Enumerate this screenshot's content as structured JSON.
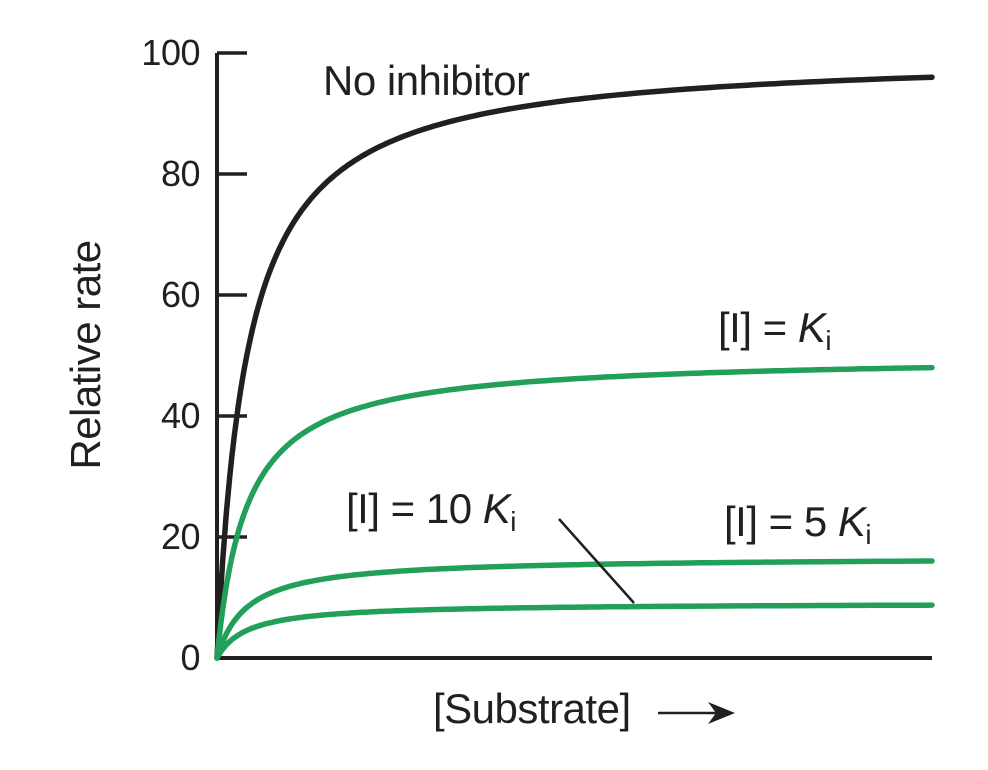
{
  "figure": {
    "ylabel": "Relative rate",
    "xlabel": "[Substrate]",
    "x_axis_arrow": true,
    "annotations": {
      "no_inhibitor": "No inhibitor",
      "ki": {
        "prefix": "[I] = ",
        "symbol": "K",
        "sub": "i"
      },
      "ten_ki": {
        "prefix": "[I] = 10 ",
        "symbol": "K",
        "sub": "i"
      },
      "five_ki": {
        "prefix": "[I] = 5 ",
        "symbol": "K",
        "sub": "i"
      }
    },
    "colors": {
      "ink": "#231f20",
      "green": "#22a05a"
    }
  },
  "chart_data": {
    "type": "line",
    "title": "",
    "xlabel": "[Substrate]",
    "ylabel": "Relative rate",
    "ylim": [
      0,
      100
    ],
    "yticks": [
      0,
      20,
      40,
      60,
      80,
      100
    ],
    "xticks": [],
    "x_axis_note": "unlabeled substrate-concentration axis with right arrow; range 0 to ~24 Km",
    "x_max_km_units": 24,
    "grid": false,
    "legend": "inline labels next to curves",
    "axis_color": "#231f20",
    "curve_model": "Michaelis-Menten saturation: v = Vmax_app * [S] / (Km + [S]); noncompetitive inhibition: Vmax_app = 100 / (1 + [I]/Ki), Km unchanged",
    "series": [
      {
        "label": "No inhibitor",
        "color": "#231f20",
        "vmax_app": 100,
        "km": 1,
        "v_at_xmax": 96
      },
      {
        "label": "[I] = Ki",
        "color": "#22a05a",
        "vmax_app": 50,
        "km": 1,
        "v_at_xmax": 48
      },
      {
        "label": "[I] = 5 Ki",
        "color": "#22a05a",
        "vmax_app": 16.7,
        "km": 1,
        "v_at_xmax": 16
      },
      {
        "label": "[I] = 10 Ki",
        "color": "#22a05a",
        "vmax_app": 9.1,
        "km": 1,
        "v_at_xmax": 8.7
      }
    ]
  }
}
